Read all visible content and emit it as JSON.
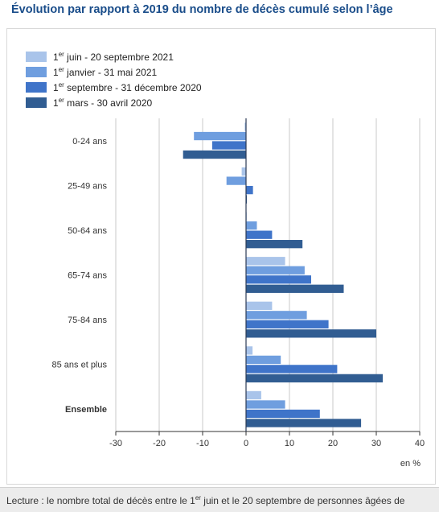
{
  "title": "Évolution par rapport à 2019 du nombre de décès cumulé selon l’âge",
  "chart_data": {
    "type": "bar",
    "orientation": "horizontal",
    "categories": [
      "0-24 ans",
      "25-49 ans",
      "50-64 ans",
      "65-74 ans",
      "75-84 ans",
      "85 ans et plus",
      "Ensemble"
    ],
    "series": [
      {
        "name": "1er juin - 20 septembre 2021",
        "name_parts": [
          "1",
          "er",
          " juin - 20 septembre 2021"
        ],
        "color": "#a9c4ea",
        "values": [
          -0.3,
          -1.0,
          0.0,
          9.0,
          6.0,
          1.5,
          3.5
        ]
      },
      {
        "name": "1er janvier - 31 mai 2021",
        "name_parts": [
          "1",
          "er",
          " janvier - 31 mai 2021"
        ],
        "color": "#6f9edf",
        "values": [
          -12.0,
          -4.5,
          2.5,
          13.5,
          14.0,
          8.0,
          9.0
        ]
      },
      {
        "name": "1er septembre - 31 décembre 2020",
        "name_parts": [
          "1",
          "er",
          " septembre - 31 décembre 2020"
        ],
        "color": "#3f74c9",
        "values": [
          -7.8,
          1.6,
          6.0,
          15.0,
          19.0,
          21.0,
          17.0
        ]
      },
      {
        "name": "1er mars - 30 avril 2020",
        "name_parts": [
          "1",
          "er",
          " mars - 30 avril 2020"
        ],
        "color": "#315d92",
        "values": [
          -14.5,
          0.2,
          13.0,
          22.5,
          30.0,
          31.5,
          26.5
        ]
      }
    ],
    "xlim": [
      -30,
      40
    ],
    "xticks": [
      -30,
      -20,
      -10,
      0,
      10,
      20,
      30,
      40
    ],
    "xlabel": "en %",
    "grid": true,
    "legend_position": "top-left",
    "bold_category": "Ensemble"
  },
  "footer": {
    "before": "Lecture : le nombre total de décès entre le 1",
    "sup": "er",
    "after": " juin et le 20 septembre de personnes âgées de"
  }
}
